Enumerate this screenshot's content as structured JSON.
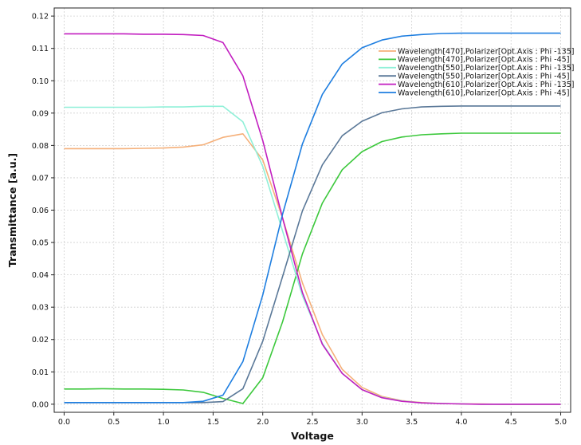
{
  "chart_data": {
    "type": "line",
    "title": "",
    "xlabel": "Voltage",
    "ylabel": "Transmittance [a.u.]",
    "xlim": [
      -0.1,
      5.1
    ],
    "ylim": [
      -0.0025,
      0.1225
    ],
    "x_ticks": [
      0.0,
      0.5,
      1.0,
      1.5,
      2.0,
      2.5,
      3.0,
      3.5,
      4.0,
      4.5,
      5.0
    ],
    "x_tick_labels": [
      "0.0",
      "0.5",
      "1.0",
      "1.5",
      "2.0",
      "2.5",
      "3.0",
      "3.5",
      "4.0",
      "4.5",
      "5.0"
    ],
    "y_ticks": [
      0.0,
      0.01,
      0.02,
      0.03,
      0.04,
      0.05,
      0.06,
      0.07,
      0.08,
      0.09,
      0.1,
      0.11,
      0.12
    ],
    "y_tick_labels": [
      "0.00",
      "0.01",
      "0.02",
      "0.03",
      "0.04",
      "0.05",
      "0.06",
      "0.07",
      "0.08",
      "0.09",
      "0.10",
      "0.11",
      "0.12"
    ],
    "grid": true,
    "legend_position": "top-right",
    "x": [
      0.0,
      0.2,
      0.4,
      0.6,
      0.8,
      1.0,
      1.2,
      1.4,
      1.6,
      1.8,
      2.0,
      2.2,
      2.4,
      2.6,
      2.8,
      3.0,
      3.2,
      3.4,
      3.6,
      3.8,
      4.0,
      4.2,
      4.4,
      4.6,
      4.8,
      5.0
    ],
    "series": [
      {
        "name": "Wavelength[470],Polarizer[Opt.Axis : Phi -135]",
        "color": "#f5b07a",
        "values": [
          0.079,
          0.079,
          0.079,
          0.079,
          0.0791,
          0.0792,
          0.0795,
          0.0802,
          0.0825,
          0.0836,
          0.0755,
          0.0575,
          0.0375,
          0.0215,
          0.0108,
          0.0052,
          0.0024,
          0.0011,
          0.0005,
          0.0002,
          0.0001,
          0.0001,
          0.0,
          0.0,
          0.0,
          0.0
        ]
      },
      {
        "name": "Wavelength[470],Polarizer[Opt.Axis : Phi -45]",
        "color": "#3cc83c",
        "values": [
          0.0047,
          0.0047,
          0.0048,
          0.0047,
          0.0047,
          0.0046,
          0.0044,
          0.0037,
          0.0018,
          0.0002,
          0.0082,
          0.0255,
          0.0465,
          0.0622,
          0.0725,
          0.0781,
          0.0812,
          0.0826,
          0.0833,
          0.0836,
          0.0838,
          0.0838,
          0.0838,
          0.0838,
          0.0838,
          0.0838
        ]
      },
      {
        "name": "Wavelength[550],Polarizer[Opt.Axis : Phi -135]",
        "color": "#8ff0d8",
        "values": [
          0.0918,
          0.0918,
          0.0918,
          0.0918,
          0.0918,
          0.0919,
          0.0919,
          0.0921,
          0.0921,
          0.0873,
          0.0735,
          0.0535,
          0.0335,
          0.0188,
          0.0095,
          0.0045,
          0.0021,
          0.001,
          0.0004,
          0.0002,
          0.0001,
          0.0,
          0.0,
          0.0,
          0.0,
          0.0
        ]
      },
      {
        "name": "Wavelength[550],Polarizer[Opt.Axis : Phi -45]",
        "color": "#5a7898",
        "values": [
          0.0005,
          0.0005,
          0.0005,
          0.0005,
          0.0005,
          0.0005,
          0.0005,
          0.0005,
          0.0008,
          0.0048,
          0.0195,
          0.0395,
          0.0598,
          0.074,
          0.083,
          0.0875,
          0.0901,
          0.0913,
          0.0919,
          0.0921,
          0.0922,
          0.0922,
          0.0922,
          0.0922,
          0.0922,
          0.0922
        ]
      },
      {
        "name": "Wavelength[610],Polarizer[Opt.Axis : Phi -135]",
        "color": "#c21ec0",
        "values": [
          0.1145,
          0.1145,
          0.1145,
          0.1145,
          0.1144,
          0.1144,
          0.1143,
          0.114,
          0.1118,
          0.1015,
          0.0815,
          0.0575,
          0.0345,
          0.0185,
          0.0095,
          0.0045,
          0.002,
          0.0009,
          0.0004,
          0.0002,
          0.0001,
          0.0,
          0.0,
          0.0,
          0.0,
          0.0
        ]
      },
      {
        "name": "Wavelength[610],Polarizer[Opt.Axis : Phi -45]",
        "color": "#1e7ee0",
        "values": [
          0.0005,
          0.0005,
          0.0005,
          0.0005,
          0.0005,
          0.0005,
          0.0005,
          0.0009,
          0.0028,
          0.0132,
          0.0338,
          0.0588,
          0.0805,
          0.0958,
          0.1052,
          0.1102,
          0.1126,
          0.1138,
          0.1143,
          0.1146,
          0.1147,
          0.1147,
          0.1147,
          0.1147,
          0.1147,
          0.1147
        ]
      }
    ]
  }
}
